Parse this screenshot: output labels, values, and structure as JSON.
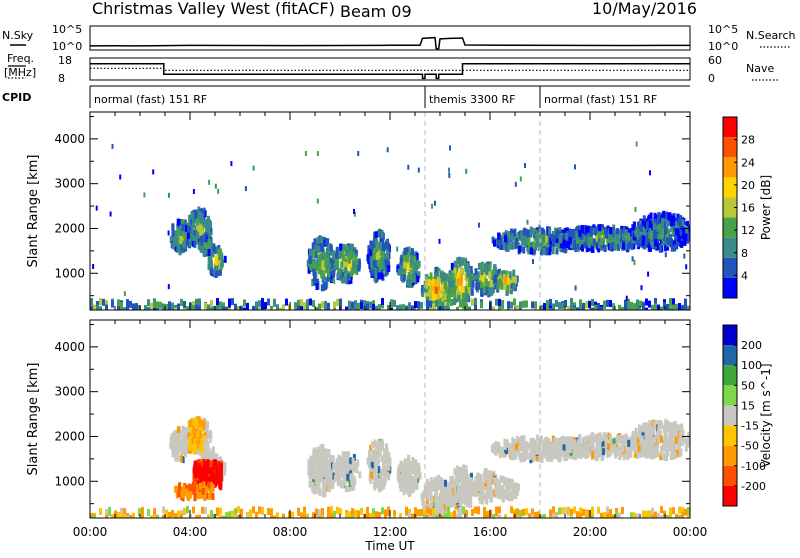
{
  "header": {
    "title": "Christmas Valley West (fitACF)",
    "beam": "Beam 09",
    "date": "10/May/2016"
  },
  "summary_panel": {
    "nsky_label": "N.Sky",
    "nsky_ticks": [
      "10^5",
      "10^0"
    ],
    "nsearch_label": "N.Search",
    "freq_label_1": "Freq.",
    "freq_label_2": "[MHz]",
    "freq_ticks": [
      "18",
      "8"
    ],
    "nave_label": "Nave",
    "nave_ticks": [
      "60",
      "0"
    ],
    "cpid_label": "CPID",
    "modes": [
      {
        "start_hr": 0.0,
        "label": "normal (fast) 151 RF"
      },
      {
        "start_hr": 13.4,
        "label": "themis 3300 RF"
      },
      {
        "start_hr": 18.0,
        "label": "normal (fast) 151 RF"
      }
    ],
    "freq_trace": [
      [
        0,
        15.6
      ],
      [
        2.95,
        15.6
      ],
      [
        2.95,
        10.4
      ],
      [
        13.3,
        10.4
      ],
      [
        13.3,
        8.3
      ],
      [
        13.4,
        8.3
      ],
      [
        13.4,
        10.4
      ],
      [
        13.85,
        10.4
      ],
      [
        13.85,
        8.3
      ],
      [
        13.95,
        8.3
      ],
      [
        13.95,
        10.4
      ],
      [
        14.9,
        10.4
      ],
      [
        14.9,
        15.6
      ],
      [
        24,
        15.6
      ]
    ],
    "nave_trace": [
      [
        0,
        32
      ],
      [
        2.95,
        32
      ],
      [
        2.95,
        26
      ],
      [
        24,
        26
      ]
    ],
    "nsky_trace": [
      [
        0,
        0.7
      ],
      [
        1,
        0.72
      ],
      [
        2,
        0.7
      ],
      [
        3,
        0.78
      ],
      [
        4,
        0.82
      ],
      [
        6,
        0.8
      ],
      [
        8,
        0.78
      ],
      [
        10,
        0.8
      ],
      [
        12,
        0.84
      ],
      [
        13.2,
        0.86
      ],
      [
        13.3,
        2.4
      ],
      [
        13.8,
        2.6
      ],
      [
        13.85,
        0.1
      ],
      [
        13.95,
        0.1
      ],
      [
        14,
        2.3
      ],
      [
        14.4,
        2.4
      ],
      [
        14.9,
        2.5
      ],
      [
        15,
        0.9
      ],
      [
        17,
        0.84
      ],
      [
        19,
        0.82
      ],
      [
        21,
        0.8
      ],
      [
        23,
        0.82
      ],
      [
        24,
        0.82
      ]
    ]
  },
  "chart_data": [
    {
      "type": "heatmap",
      "panel": "power",
      "ylabel": "Slant Range [km]",
      "ylim": [
        180,
        4600
      ],
      "yticks": [
        1000,
        2000,
        3000,
        4000
      ],
      "xlim": [
        0,
        24
      ],
      "colorbar_label": "Power [dB]",
      "colorbar_ticks": [
        "28",
        "24",
        "20",
        "16",
        "12",
        "8",
        "4"
      ],
      "colorbar_range": [
        0,
        32
      ],
      "colors": [
        "#0000ff",
        "#2255bb",
        "#3a8a8a",
        "#47a24a",
        "#b8c83a",
        "#ffd200",
        "#ff9a00",
        "#ff5000",
        "#ff0000"
      ],
      "grid": "dashed vertical lines at 13.4 h and 18.0 h",
      "regions": [
        {
          "x": [
            2.5,
            5.5
          ],
          "y": [
            500,
            3700
          ],
          "blobs": [
            [
              3.6,
              1900,
              0.45,
              350,
              18
            ],
            [
              4.3,
              2100,
              0.5,
              400,
              16
            ],
            [
              5.0,
              1350,
              0.35,
              300,
              20
            ],
            [
              4.6,
              1700,
              0.3,
              200,
              14
            ]
          ]
        },
        {
          "x": [
            7.8,
            13.4
          ],
          "y": [
            500,
            2300
          ],
          "blobs": [
            [
              9.2,
              1300,
              0.55,
              550,
              16
            ],
            [
              10.2,
              1300,
              0.55,
              400,
              20
            ],
            [
              11.5,
              1450,
              0.45,
              550,
              14
            ],
            [
              12.7,
              1200,
              0.45,
              400,
              18
            ]
          ]
        },
        {
          "x": [
            13.0,
            17.2
          ],
          "y": [
            300,
            1600
          ],
          "blobs": [
            [
              13.8,
              700,
              0.6,
              450,
              26
            ],
            [
              14.8,
              900,
              0.5,
              500,
              24
            ],
            [
              15.8,
              950,
              0.5,
              350,
              20
            ],
            [
              16.6,
              900,
              0.5,
              250,
              22
            ]
          ]
        },
        {
          "x": [
            15.5,
            24
          ],
          "y": [
            1300,
            2500
          ],
          "blobs": [
            [
              18,
              1800,
              2,
              250,
              14
            ],
            [
              20.5,
              1850,
              2.2,
              250,
              12
            ],
            [
              22.8,
              2000,
              1.2,
              400,
              10
            ]
          ]
        }
      ]
    },
    {
      "type": "heatmap",
      "panel": "velocity",
      "ylabel": "Slant Range [km]",
      "ylim": [
        180,
        4600
      ],
      "yticks": [
        1000,
        2000,
        3000,
        4000
      ],
      "xlabel": "Time UT",
      "xticks": [
        "00:00",
        "04:00",
        "08:00",
        "12:00",
        "16:00",
        "20:00",
        "00:00"
      ],
      "xlim": [
        0,
        24
      ],
      "colorbar_label": "Velocity [m s^-1]",
      "colorbar_ticks": [
        "200",
        "100",
        "50",
        "15",
        "-15",
        "-50",
        "-100",
        "-200"
      ],
      "colors": [
        "#ff0000",
        "#ff5000",
        "#ff9a00",
        "#ffc400",
        "#c8c8c0",
        "#7ed84a",
        "#3fa63c",
        "#2266aa",
        "#0000cc"
      ],
      "regions": [
        {
          "x": [
            3.0,
            4.5
          ],
          "y": [
            1600,
            2200
          ],
          "fill": "#c8c8c0"
        },
        {
          "x": [
            4.0,
            5.2
          ],
          "y": [
            900,
            1500
          ],
          "fill": "#ff0000"
        },
        {
          "x": [
            3.3,
            4.8
          ],
          "y": [
            700,
            1000
          ],
          "fill": "#ff9a00"
        }
      ]
    }
  ]
}
